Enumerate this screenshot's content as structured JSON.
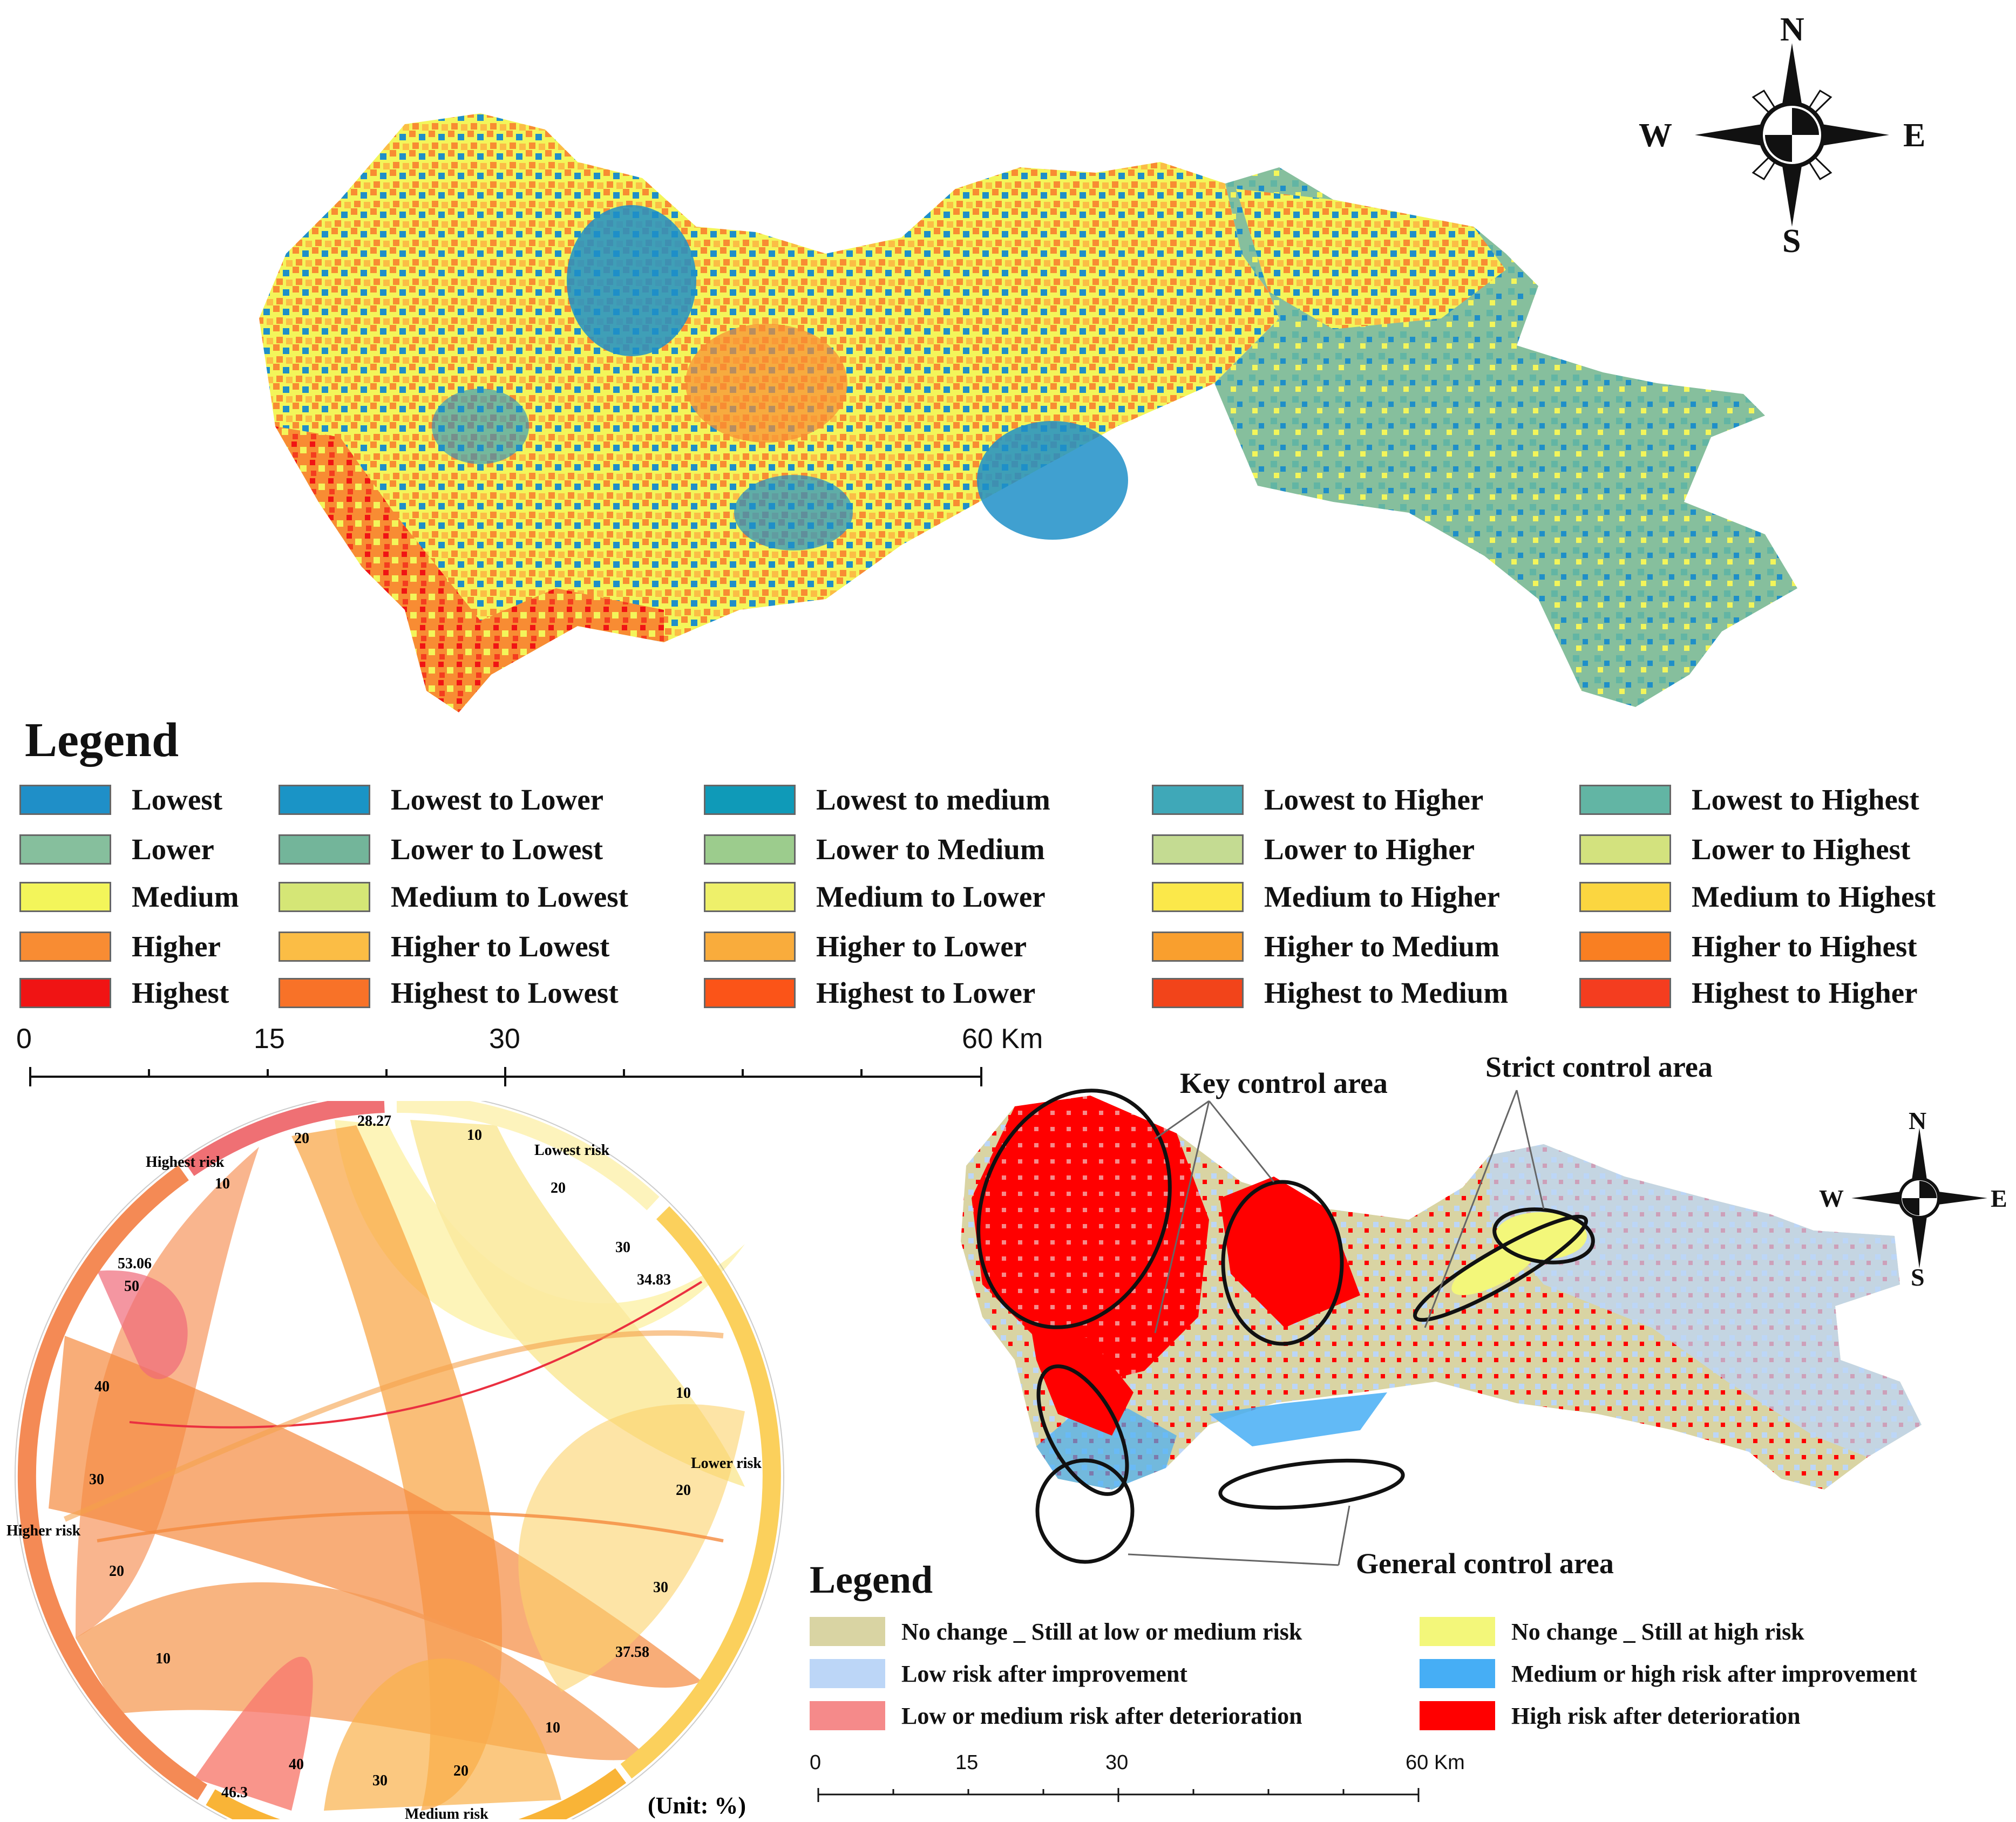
{
  "colors": {
    "lowest": "#1f8fc8",
    "lower": "#86bf9d",
    "medium": "#f3f55a",
    "higher": "#f88c33",
    "highest": "#f01414",
    "no_change_low": "#d9d4a3",
    "no_change_high": "#f3f77a",
    "low_after_improve": "#bcd6f7",
    "mid_high_after_improve": "#46aef5",
    "low_mid_after_det": "#f58a8a",
    "high_after_det": "#ff0000"
  },
  "compass_top": {
    "n": "N",
    "s": "S",
    "e": "E",
    "w": "W"
  },
  "compass_bottom": {
    "n": "N",
    "s": "S",
    "e": "E",
    "w": "W"
  },
  "legend1": {
    "title": "Legend",
    "columns": [
      [
        {
          "label": "Lowest",
          "color": "#1f8fc8"
        },
        {
          "label": "Lower",
          "color": "#86bf9d"
        },
        {
          "label": "Medium",
          "color": "#f3f55a"
        },
        {
          "label": "Higher",
          "color": "#f88c33"
        },
        {
          "label": "Highest",
          "color": "#f01414"
        }
      ],
      [
        {
          "label": "Lowest to Lower",
          "color": "#1a94c6"
        },
        {
          "label": "Lower to Lowest",
          "color": "#73b59a"
        },
        {
          "label": "Medium to Lowest",
          "color": "#d5e676"
        },
        {
          "label": "Higher to Lowest",
          "color": "#fbbd45"
        },
        {
          "label": "Highest to Lowest",
          "color": "#f87228"
        }
      ],
      [
        {
          "label": "Lowest to medium",
          "color": "#0f9ab8"
        },
        {
          "label": "Lower to Medium",
          "color": "#9ccc8d"
        },
        {
          "label": "Medium to Lower",
          "color": "#eef06a"
        },
        {
          "label": "Higher to Lower",
          "color": "#f9ac3c"
        },
        {
          "label": "Highest to Lower",
          "color": "#fb5418"
        }
      ],
      [
        {
          "label": "Lowest to Higher",
          "color": "#3fa8b8"
        },
        {
          "label": "Lower to Higher",
          "color": "#c4db92"
        },
        {
          "label": "Medium to Higher",
          "color": "#fbe84a"
        },
        {
          "label": "Higher to Medium",
          "color": "#f99f2e"
        },
        {
          "label": "Highest to Medium",
          "color": "#f2441a"
        }
      ],
      [
        {
          "label": "Lowest to Highest",
          "color": "#62b5a4"
        },
        {
          "label": "Lower to Highest",
          "color": "#d3e27e"
        },
        {
          "label": "Medium to Highest",
          "color": "#fbd640"
        },
        {
          "label": "Higher to Highest",
          "color": "#f97f22"
        },
        {
          "label": "Highest to Higher",
          "color": "#f43d1f"
        }
      ]
    ]
  },
  "scale1": {
    "labels": [
      "0",
      "15",
      "30",
      "60 Km"
    ]
  },
  "chord": {
    "highest_risk": "Highest risk",
    "lowest_risk": "Lowest risk",
    "lower_risk": "Lower risk",
    "higher_risk": "Higher risk",
    "medium_risk": "Medium risk",
    "unit": "(Unit: %)",
    "totals": [
      "28.27",
      "34.83",
      "37.58",
      "46.3",
      "53.06"
    ],
    "ticks_highest": [
      "20",
      "10"
    ],
    "ticks_lowest": [
      "10",
      "20",
      "30"
    ],
    "ticks_lower": [
      "10",
      "20",
      "30"
    ],
    "ticks_medium": [
      "10",
      "20",
      "30",
      "40"
    ],
    "ticks_higher": [
      "50",
      "40",
      "30",
      "20",
      "10"
    ]
  },
  "map2": {
    "key_control": "Key control area",
    "strict_control": "Strict control area",
    "general_control": "General control area"
  },
  "legend2": {
    "title": "Legend",
    "items": [
      {
        "label": "No change _ Still at low or medium risk",
        "color": "#d9d4a3"
      },
      {
        "label": "Low risk after improvement",
        "color": "#bcd6f7"
      },
      {
        "label": "Low or medium risk after deterioration",
        "color": "#f58a8a"
      },
      {
        "label": "No change _ Still at high risk",
        "color": "#f3f77a"
      },
      {
        "label": "Medium or high risk after improvement",
        "color": "#46aef5"
      },
      {
        "label": "High risk after deterioration",
        "color": "#ff0000"
      }
    ]
  },
  "scale2": {
    "labels": [
      "0",
      "15",
      "30",
      "60 Km"
    ]
  }
}
